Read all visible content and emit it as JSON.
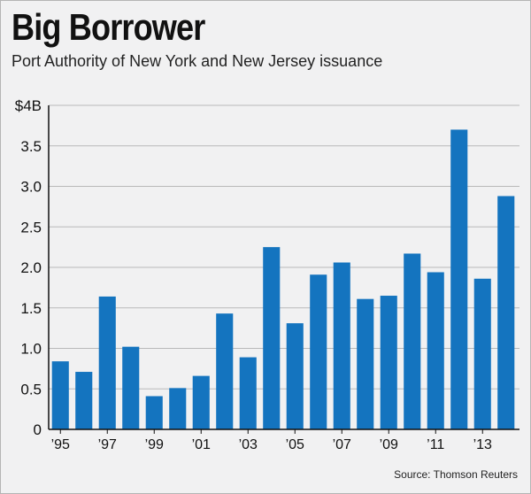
{
  "colors": {
    "bar": "#1474bf",
    "grid": "#b9b9b9",
    "axis": "#111111",
    "background": "#f1f1f2"
  },
  "source": "Source: Thomson Reuters",
  "chart_data": {
    "type": "bar",
    "title": "Big Borrower",
    "subtitle": "Port Authority of New York and New Jersey issuance",
    "categories": [
      "1995",
      "1996",
      "1997",
      "1998",
      "1999",
      "2000",
      "2001",
      "2002",
      "2003",
      "2004",
      "2005",
      "2006",
      "2007",
      "2008",
      "2009",
      "2010",
      "2011",
      "2012",
      "2013",
      "2014"
    ],
    "values": [
      0.84,
      0.71,
      1.64,
      1.02,
      0.41,
      0.51,
      0.66,
      1.43,
      0.89,
      2.25,
      1.31,
      1.91,
      2.06,
      1.61,
      1.65,
      2.17,
      1.94,
      3.7,
      1.86,
      2.88
    ],
    "x_tick_labels": [
      {
        "index": 0,
        "label": "’95"
      },
      {
        "index": 2,
        "label": "’97"
      },
      {
        "index": 4,
        "label": "’99"
      },
      {
        "index": 6,
        "label": "’01"
      },
      {
        "index": 8,
        "label": "’03"
      },
      {
        "index": 10,
        "label": "’05"
      },
      {
        "index": 12,
        "label": "’07"
      },
      {
        "index": 14,
        "label": "’09"
      },
      {
        "index": 16,
        "label": "’11"
      },
      {
        "index": 18,
        "label": "’13"
      }
    ],
    "y_ticks": [
      {
        "value": 0,
        "label": "0"
      },
      {
        "value": 0.5,
        "label": "0.5"
      },
      {
        "value": 1.0,
        "label": "1.0"
      },
      {
        "value": 1.5,
        "label": "1.5"
      },
      {
        "value": 2.0,
        "label": "2.0"
      },
      {
        "value": 2.5,
        "label": "2.5"
      },
      {
        "value": 3.0,
        "label": "3.0"
      },
      {
        "value": 3.5,
        "label": "3.5"
      },
      {
        "value": 4,
        "label": "$4B"
      }
    ],
    "xlabel": "",
    "ylabel": "",
    "ylim": [
      0,
      4
    ],
    "grid": true,
    "legend": "none"
  }
}
